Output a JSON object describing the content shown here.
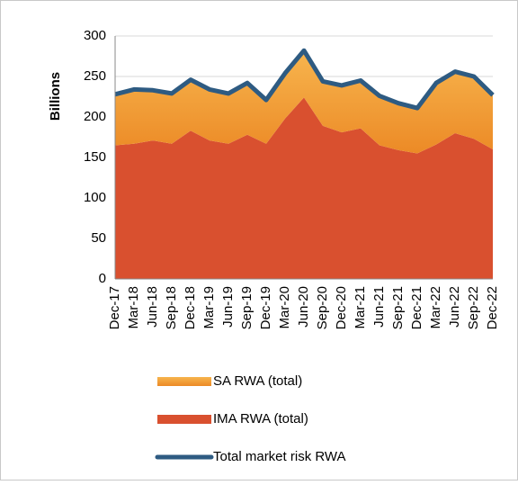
{
  "chart_data": {
    "type": "stacked_area",
    "y_label": "Billions",
    "categories": [
      "Dec-17",
      "Mar-18",
      "Jun-18",
      "Sep-18",
      "Dec-18",
      "Mar-19",
      "Jun-19",
      "Sep-19",
      "Dec-19",
      "Mar-20",
      "Jun-20",
      "Sep-20",
      "Dec-20",
      "Mar-21",
      "Jun-21",
      "Sep-21",
      "Dec-21",
      "Mar-22",
      "Jun-22",
      "Sep-22",
      "Dec-22"
    ],
    "series": [
      {
        "name": "SA RWA (total)",
        "color": "#f29a30",
        "values": [
          63,
          67,
          62,
          62,
          63,
          63,
          62,
          64,
          54,
          56,
          58,
          55,
          58,
          59,
          61,
          58,
          56,
          76,
          76,
          77,
          67
        ]
      },
      {
        "name": "IMA RWA (total)",
        "color": "#d9502f",
        "values": [
          165,
          167,
          171,
          167,
          183,
          171,
          167,
          178,
          167,
          198,
          224,
          189,
          181,
          186,
          165,
          159,
          155,
          166,
          180,
          173,
          160
        ]
      },
      {
        "name": "Total market risk RWA",
        "color": "#2e5b82",
        "values": [
          228,
          234,
          233,
          229,
          246,
          234,
          229,
          242,
          221,
          254,
          282,
          244,
          239,
          245,
          226,
          217,
          211,
          242,
          256,
          250,
          227
        ]
      }
    ],
    "ylim": [
      0,
      300
    ],
    "yticks": [
      0,
      50,
      100,
      150,
      200,
      250,
      300
    ],
    "grid": true
  }
}
